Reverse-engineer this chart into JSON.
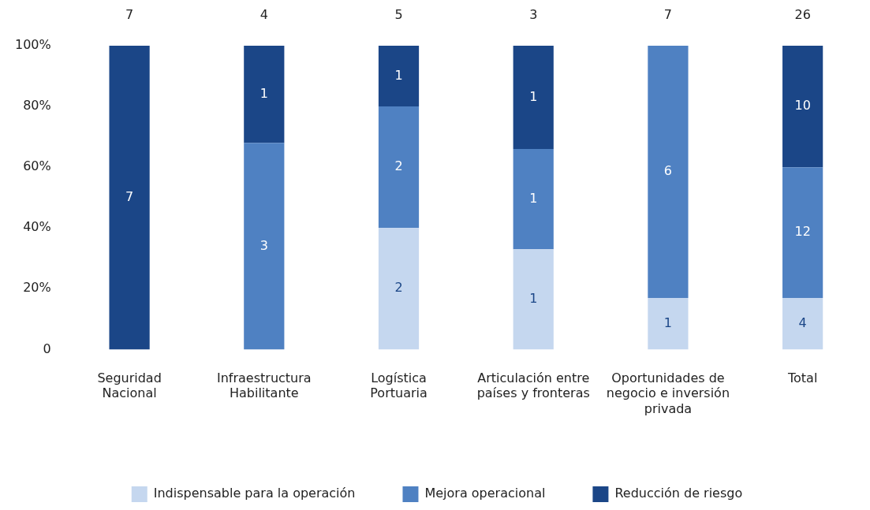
{
  "chart_data": {
    "type": "bar",
    "stacked": true,
    "categories": [
      "Seguridad Nacional",
      "Infraestructura Habilitante",
      "Logística Portuaria",
      "Articulación entre países y fronteras",
      "Oportunidades de negocio e inversión privada",
      "Total"
    ],
    "series": [
      {
        "name": "Indispensable para la operación",
        "color": "#c5d7ef",
        "values": [
          null,
          null,
          40,
          33,
          17,
          17
        ]
      },
      {
        "name": "Mejora operacional",
        "color": "#4f81c2",
        "values": [
          null,
          68,
          40,
          33,
          83,
          43
        ]
      },
      {
        "name": "Reducción de riesgo",
        "color": "#1b4687",
        "values": [
          100,
          32,
          20,
          34,
          null,
          40
        ]
      }
    ],
    "annotations": [
      "7",
      "4",
      "5",
      "3",
      "7",
      "26",
      "7",
      "3",
      "1",
      "2",
      "2",
      "1",
      "1",
      "1",
      "1",
      "1",
      "6",
      "4",
      "12",
      "10"
    ],
    "ylim": [
      0,
      100
    ],
    "yticks": [
      {
        "value": 0,
        "label": "0"
      },
      {
        "value": 20,
        "label": "20%"
      },
      {
        "value": 40,
        "label": "40%"
      },
      {
        "value": 60,
        "label": "60%"
      },
      {
        "value": 80,
        "label": "80%"
      },
      {
        "value": 100,
        "label": "100%"
      }
    ],
    "grid": false,
    "legend": "bottom"
  }
}
